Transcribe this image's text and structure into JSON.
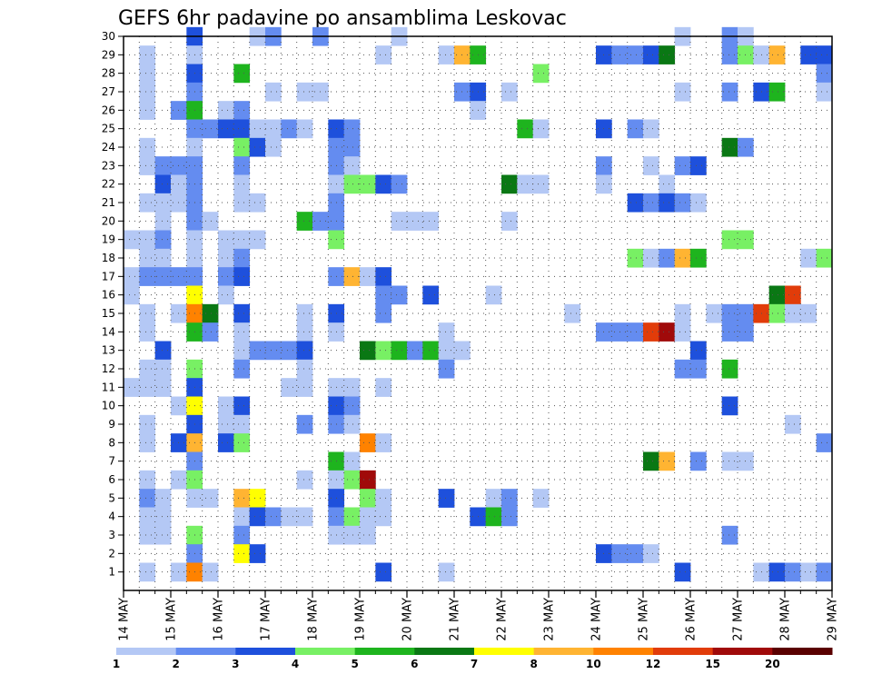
{
  "chart_data": {
    "type": "heatmap",
    "title": "GEFS 6hr padavine po ansamblima Leskovac",
    "xlabel": "",
    "ylabel": "",
    "x_tick_labels": [
      "14 MAY",
      "15 MAY",
      "16 MAY",
      "17 MAY",
      "18 MAY",
      "19 MAY",
      "20 MAY",
      "21 MAY",
      "22 MAY",
      "23 MAY",
      "24 MAY",
      "25 MAY",
      "26 MAY",
      "27 MAY",
      "28 MAY",
      "29 MAY"
    ],
    "y_tick_labels": [
      "1",
      "2",
      "3",
      "4",
      "5",
      "6",
      "7",
      "8",
      "9",
      "10",
      "11",
      "12",
      "13",
      "14",
      "15",
      "16",
      "17",
      "18",
      "19",
      "20",
      "21",
      "22",
      "23",
      "24",
      "25",
      "26",
      "27",
      "28",
      "29",
      "30"
    ],
    "ylim": [
      0,
      30
    ],
    "grid": true,
    "legend_placement": "bottom",
    "legend": {
      "labels": [
        "1",
        "2",
        "3",
        "4",
        "5",
        "6",
        "7",
        "8",
        "10",
        "12",
        "15",
        "20"
      ],
      "colors": [
        "#b4c8f5",
        "#648cf0",
        "#1e50dc",
        "#78f064",
        "#1eb41e",
        "#0a7814",
        "#ffff00",
        "#ffb432",
        "#ff8200",
        "#e13c0a",
        "#a00a0a",
        "#5a0000"
      ]
    },
    "category_colors": [
      "#b4c8f5",
      "#648cf0",
      "#1e50dc",
      "#78f064",
      "#1eb41e",
      "#0a7814",
      "#ffff00",
      "#ffb432",
      "#ff8200",
      "#e13c0a",
      "#a00a0a",
      "#5a0000"
    ],
    "cells": [
      [
        4,
        30,
        3
      ],
      [
        8,
        30,
        1
      ],
      [
        9,
        30,
        2
      ],
      [
        12,
        30,
        2
      ],
      [
        17,
        30,
        1
      ],
      [
        35,
        30,
        1
      ],
      [
        38,
        30,
        2
      ],
      [
        39,
        30,
        1
      ],
      [
        1,
        29,
        1
      ],
      [
        4,
        29,
        1
      ],
      [
        16,
        29,
        1
      ],
      [
        20,
        29,
        1
      ],
      [
        21,
        29,
        8
      ],
      [
        22,
        29,
        5
      ],
      [
        30,
        29,
        3
      ],
      [
        31,
        29,
        2
      ],
      [
        32,
        29,
        2
      ],
      [
        33,
        29,
        3
      ],
      [
        34,
        29,
        6
      ],
      [
        38,
        29,
        2
      ],
      [
        39,
        29,
        4
      ],
      [
        40,
        29,
        1
      ],
      [
        41,
        29,
        8
      ],
      [
        43,
        29,
        3
      ],
      [
        44,
        29,
        3
      ],
      [
        1,
        28,
        1
      ],
      [
        4,
        28,
        3
      ],
      [
        7,
        28,
        5
      ],
      [
        26,
        28,
        4
      ],
      [
        44,
        28,
        2
      ],
      [
        1,
        27,
        1
      ],
      [
        4,
        27,
        2
      ],
      [
        9,
        27,
        1
      ],
      [
        11,
        27,
        1
      ],
      [
        12,
        27,
        1
      ],
      [
        21,
        27,
        2
      ],
      [
        22,
        27,
        3
      ],
      [
        24,
        27,
        1
      ],
      [
        35,
        27,
        1
      ],
      [
        38,
        27,
        2
      ],
      [
        40,
        27,
        3
      ],
      [
        41,
        27,
        5
      ],
      [
        44,
        27,
        1
      ],
      [
        1,
        26,
        1
      ],
      [
        3,
        26,
        2
      ],
      [
        4,
        26,
        5
      ],
      [
        6,
        26,
        1
      ],
      [
        7,
        26,
        2
      ],
      [
        22,
        26,
        1
      ],
      [
        4,
        25,
        2
      ],
      [
        5,
        25,
        2
      ],
      [
        6,
        25,
        3
      ],
      [
        7,
        25,
        3
      ],
      [
        8,
        25,
        1
      ],
      [
        9,
        25,
        1
      ],
      [
        10,
        25,
        2
      ],
      [
        11,
        25,
        1
      ],
      [
        13,
        25,
        3
      ],
      [
        14,
        25,
        2
      ],
      [
        25,
        25,
        5
      ],
      [
        26,
        25,
        1
      ],
      [
        30,
        25,
        3
      ],
      [
        32,
        25,
        2
      ],
      [
        33,
        25,
        1
      ],
      [
        1,
        24,
        1
      ],
      [
        4,
        24,
        1
      ],
      [
        7,
        24,
        4
      ],
      [
        8,
        24,
        3
      ],
      [
        9,
        24,
        1
      ],
      [
        13,
        24,
        2
      ],
      [
        14,
        24,
        2
      ],
      [
        38,
        24,
        6
      ],
      [
        39,
        24,
        2
      ],
      [
        1,
        23,
        1
      ],
      [
        2,
        23,
        2
      ],
      [
        3,
        23,
        2
      ],
      [
        4,
        23,
        2
      ],
      [
        7,
        23,
        2
      ],
      [
        13,
        23,
        2
      ],
      [
        14,
        23,
        1
      ],
      [
        30,
        23,
        2
      ],
      [
        33,
        23,
        1
      ],
      [
        35,
        23,
        2
      ],
      [
        36,
        23,
        3
      ],
      [
        2,
        22,
        3
      ],
      [
        3,
        22,
        1
      ],
      [
        4,
        22,
        2
      ],
      [
        7,
        22,
        1
      ],
      [
        13,
        22,
        1
      ],
      [
        14,
        22,
        4
      ],
      [
        15,
        22,
        4
      ],
      [
        16,
        22,
        3
      ],
      [
        17,
        22,
        2
      ],
      [
        24,
        22,
        6
      ],
      [
        25,
        22,
        1
      ],
      [
        26,
        22,
        1
      ],
      [
        30,
        22,
        1
      ],
      [
        34,
        22,
        1
      ],
      [
        1,
        21,
        1
      ],
      [
        2,
        21,
        1
      ],
      [
        3,
        21,
        1
      ],
      [
        4,
        21,
        2
      ],
      [
        7,
        21,
        1
      ],
      [
        8,
        21,
        1
      ],
      [
        13,
        21,
        2
      ],
      [
        32,
        21,
        3
      ],
      [
        33,
        21,
        2
      ],
      [
        34,
        21,
        3
      ],
      [
        35,
        21,
        2
      ],
      [
        36,
        21,
        1
      ],
      [
        2,
        20,
        1
      ],
      [
        4,
        20,
        2
      ],
      [
        5,
        20,
        1
      ],
      [
        11,
        20,
        5
      ],
      [
        12,
        20,
        2
      ],
      [
        13,
        20,
        2
      ],
      [
        17,
        20,
        1
      ],
      [
        18,
        20,
        1
      ],
      [
        19,
        20,
        1
      ],
      [
        24,
        20,
        1
      ],
      [
        0,
        19,
        1
      ],
      [
        1,
        19,
        1
      ],
      [
        2,
        19,
        2
      ],
      [
        4,
        19,
        1
      ],
      [
        6,
        19,
        1
      ],
      [
        7,
        19,
        1
      ],
      [
        8,
        19,
        1
      ],
      [
        13,
        19,
        4
      ],
      [
        38,
        19,
        4
      ],
      [
        39,
        19,
        4
      ],
      [
        1,
        18,
        1
      ],
      [
        2,
        18,
        1
      ],
      [
        4,
        18,
        1
      ],
      [
        6,
        18,
        1
      ],
      [
        7,
        18,
        2
      ],
      [
        32,
        18,
        4
      ],
      [
        33,
        18,
        1
      ],
      [
        34,
        18,
        2
      ],
      [
        35,
        18,
        8
      ],
      [
        36,
        18,
        5
      ],
      [
        43,
        18,
        1
      ],
      [
        44,
        18,
        4
      ],
      [
        0,
        17,
        1
      ],
      [
        1,
        17,
        2
      ],
      [
        2,
        17,
        2
      ],
      [
        3,
        17,
        2
      ],
      [
        4,
        17,
        2
      ],
      [
        6,
        17,
        2
      ],
      [
        7,
        17,
        3
      ],
      [
        13,
        17,
        2
      ],
      [
        14,
        17,
        8
      ],
      [
        15,
        17,
        1
      ],
      [
        16,
        17,
        3
      ],
      [
        0,
        16,
        1
      ],
      [
        4,
        16,
        7
      ],
      [
        6,
        16,
        1
      ],
      [
        16,
        16,
        2
      ],
      [
        17,
        16,
        2
      ],
      [
        19,
        16,
        3
      ],
      [
        23,
        16,
        1
      ],
      [
        41,
        16,
        6
      ],
      [
        42,
        16,
        10
      ],
      [
        1,
        15,
        1
      ],
      [
        3,
        15,
        1
      ],
      [
        4,
        15,
        9
      ],
      [
        5,
        15,
        6
      ],
      [
        7,
        15,
        3
      ],
      [
        11,
        15,
        1
      ],
      [
        13,
        15,
        3
      ],
      [
        16,
        15,
        2
      ],
      [
        28,
        15,
        1
      ],
      [
        35,
        15,
        1
      ],
      [
        37,
        15,
        1
      ],
      [
        38,
        15,
        2
      ],
      [
        39,
        15,
        2
      ],
      [
        40,
        15,
        10
      ],
      [
        41,
        15,
        4
      ],
      [
        42,
        15,
        1
      ],
      [
        43,
        15,
        1
      ],
      [
        1,
        14,
        1
      ],
      [
        4,
        14,
        5
      ],
      [
        5,
        14,
        2
      ],
      [
        7,
        14,
        1
      ],
      [
        11,
        14,
        1
      ],
      [
        13,
        14,
        1
      ],
      [
        20,
        14,
        1
      ],
      [
        30,
        14,
        2
      ],
      [
        31,
        14,
        2
      ],
      [
        32,
        14,
        2
      ],
      [
        33,
        14,
        10
      ],
      [
        34,
        14,
        11
      ],
      [
        35,
        14,
        1
      ],
      [
        38,
        14,
        2
      ],
      [
        39,
        14,
        2
      ],
      [
        2,
        13,
        3
      ],
      [
        7,
        13,
        1
      ],
      [
        8,
        13,
        2
      ],
      [
        9,
        13,
        2
      ],
      [
        10,
        13,
        2
      ],
      [
        11,
        13,
        3
      ],
      [
        15,
        13,
        6
      ],
      [
        16,
        13,
        4
      ],
      [
        17,
        13,
        5
      ],
      [
        18,
        13,
        2
      ],
      [
        19,
        13,
        5
      ],
      [
        20,
        13,
        1
      ],
      [
        21,
        13,
        1
      ],
      [
        36,
        13,
        3
      ],
      [
        1,
        12,
        1
      ],
      [
        2,
        12,
        1
      ],
      [
        4,
        12,
        4
      ],
      [
        7,
        12,
        2
      ],
      [
        11,
        12,
        1
      ],
      [
        20,
        12,
        2
      ],
      [
        35,
        12,
        2
      ],
      [
        36,
        12,
        2
      ],
      [
        38,
        12,
        5
      ],
      [
        0,
        11,
        1
      ],
      [
        1,
        11,
        1
      ],
      [
        2,
        11,
        1
      ],
      [
        4,
        11,
        3
      ],
      [
        10,
        11,
        1
      ],
      [
        11,
        11,
        1
      ],
      [
        13,
        11,
        1
      ],
      [
        14,
        11,
        1
      ],
      [
        16,
        11,
        1
      ],
      [
        3,
        10,
        1
      ],
      [
        4,
        10,
        7
      ],
      [
        6,
        10,
        1
      ],
      [
        7,
        10,
        3
      ],
      [
        13,
        10,
        3
      ],
      [
        14,
        10,
        2
      ],
      [
        38,
        10,
        3
      ],
      [
        1,
        9,
        1
      ],
      [
        4,
        9,
        3
      ],
      [
        6,
        9,
        1
      ],
      [
        7,
        9,
        1
      ],
      [
        11,
        9,
        2
      ],
      [
        13,
        9,
        2
      ],
      [
        14,
        9,
        1
      ],
      [
        42,
        9,
        1
      ],
      [
        1,
        8,
        1
      ],
      [
        3,
        8,
        3
      ],
      [
        4,
        8,
        8
      ],
      [
        6,
        8,
        3
      ],
      [
        7,
        8,
        4
      ],
      [
        15,
        8,
        9
      ],
      [
        16,
        8,
        1
      ],
      [
        44,
        8,
        2
      ],
      [
        4,
        7,
        2
      ],
      [
        13,
        7,
        5
      ],
      [
        14,
        7,
        1
      ],
      [
        33,
        7,
        6
      ],
      [
        34,
        7,
        8
      ],
      [
        36,
        7,
        2
      ],
      [
        38,
        7,
        1
      ],
      [
        39,
        7,
        1
      ],
      [
        1,
        6,
        1
      ],
      [
        3,
        6,
        1
      ],
      [
        4,
        6,
        4
      ],
      [
        11,
        6,
        1
      ],
      [
        13,
        6,
        1
      ],
      [
        14,
        6,
        4
      ],
      [
        15,
        6,
        11
      ],
      [
        1,
        5,
        2
      ],
      [
        2,
        5,
        1
      ],
      [
        4,
        5,
        1
      ],
      [
        5,
        5,
        1
      ],
      [
        7,
        5,
        8
      ],
      [
        8,
        5,
        7
      ],
      [
        13,
        5,
        3
      ],
      [
        15,
        5,
        4
      ],
      [
        16,
        5,
        1
      ],
      [
        20,
        5,
        3
      ],
      [
        23,
        5,
        1
      ],
      [
        24,
        5,
        2
      ],
      [
        26,
        5,
        1
      ],
      [
        1,
        4,
        1
      ],
      [
        2,
        4,
        1
      ],
      [
        7,
        4,
        1
      ],
      [
        8,
        4,
        3
      ],
      [
        9,
        4,
        2
      ],
      [
        10,
        4,
        1
      ],
      [
        11,
        4,
        1
      ],
      [
        13,
        4,
        2
      ],
      [
        14,
        4,
        4
      ],
      [
        15,
        4,
        1
      ],
      [
        16,
        4,
        1
      ],
      [
        22,
        4,
        3
      ],
      [
        23,
        4,
        5
      ],
      [
        24,
        4,
        2
      ],
      [
        1,
        3,
        1
      ],
      [
        2,
        3,
        1
      ],
      [
        4,
        3,
        4
      ],
      [
        7,
        3,
        2
      ],
      [
        13,
        3,
        1
      ],
      [
        14,
        3,
        1
      ],
      [
        15,
        3,
        1
      ],
      [
        38,
        3,
        2
      ],
      [
        4,
        2,
        2
      ],
      [
        7,
        2,
        7
      ],
      [
        8,
        2,
        3
      ],
      [
        30,
        2,
        3
      ],
      [
        31,
        2,
        2
      ],
      [
        32,
        2,
        2
      ],
      [
        33,
        2,
        1
      ],
      [
        1,
        1,
        1
      ],
      [
        3,
        1,
        1
      ],
      [
        4,
        1,
        9
      ],
      [
        5,
        1,
        1
      ],
      [
        16,
        1,
        3
      ],
      [
        20,
        1,
        1
      ],
      [
        35,
        1,
        3
      ],
      [
        40,
        1,
        1
      ],
      [
        41,
        1,
        3
      ],
      [
        42,
        1,
        2
      ],
      [
        43,
        1,
        1
      ],
      [
        44,
        1,
        2
      ]
    ]
  }
}
